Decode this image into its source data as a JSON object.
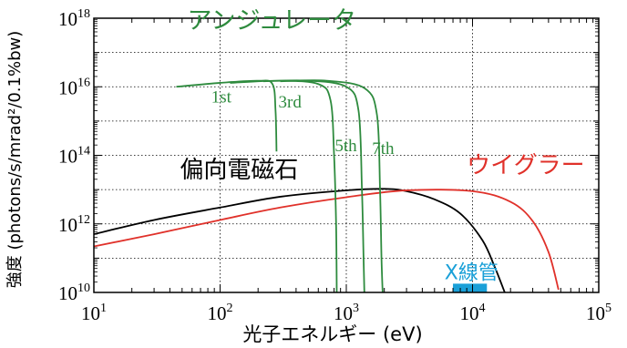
{
  "chart_data": {
    "type": "line",
    "xlabel": "光子エネルギー (eV)",
    "ylabel": "強度 (photons/s/mrad²/0.1%bw)",
    "x_scale": "log",
    "y_scale": "log",
    "xlim": [
      10,
      100000
    ],
    "ylim": [
      10000000000.0,
      1e+18
    ],
    "grid": true,
    "x_ticks": [
      {
        "value": 10,
        "base": "10",
        "exp": "1"
      },
      {
        "value": 100,
        "base": "10",
        "exp": "2"
      },
      {
        "value": 1000,
        "base": "10",
        "exp": "3"
      },
      {
        "value": 10000,
        "base": "10",
        "exp": "4"
      },
      {
        "value": 100000,
        "base": "10",
        "exp": "5"
      }
    ],
    "y_ticks": [
      {
        "value": 10000000000.0,
        "base": "10",
        "exp": "10"
      },
      {
        "value": 1000000000000.0,
        "base": "10",
        "exp": "12"
      },
      {
        "value": 100000000000000.0,
        "base": "10",
        "exp": "14"
      },
      {
        "value": 1e+16,
        "base": "10",
        "exp": "16"
      },
      {
        "value": 1e+18,
        "base": "10",
        "exp": "18"
      }
    ],
    "series": [
      {
        "name": "偏向電磁石",
        "color": "#000000",
        "x": [
          10,
          30,
          100,
          300,
          1000,
          2000,
          3000,
          5000,
          8000,
          12000,
          15000,
          18000
        ],
        "y": [
          500000000000.0,
          1300000000000.0,
          3000000000000.0,
          6200000000000.0,
          9500000000000.0,
          10500000000000.0,
          9000000000000.0,
          5200000000000.0,
          2000000000000.0,
          330000000000.0,
          55000000000.0,
          10000000000.0
        ]
      },
      {
        "name": "ウイグラー",
        "color": "#e0312a",
        "x": [
          10,
          30,
          100,
          300,
          1000,
          3000,
          10000,
          20000,
          30000,
          40000,
          48000
        ],
        "y": [
          220000000000.0,
          500000000000.0,
          1300000000000.0,
          3000000000000.0,
          6000000000000.0,
          9500000000000.0,
          9000000000000.0,
          4400000000000.0,
          1200000000000.0,
          150000000000.0,
          12000000000.0
        ]
      },
      {
        "name": "アンジュレータ 1st",
        "color": "#2e8b3e",
        "x": [
          45,
          100,
          200,
          260,
          275,
          280
        ],
        "y": [
          1e+16,
          1.3e+16,
          1.5e+16,
          1.2e+16,
          2000000000000000.0,
          130000000000000.0
        ]
      },
      {
        "name": "アンジュレータ 3rd",
        "color": "#2e8b3e",
        "x": [
          120,
          300,
          600,
          750,
          800,
          830,
          840
        ],
        "y": [
          1.3e+16,
          1.5e+16,
          1.2e+16,
          4000000000000000.0,
          100000000000000.0,
          1000000000000.0,
          10000000000.0
        ]
      },
      {
        "name": "アンジュレータ 5th",
        "color": "#2e8b3e",
        "x": [
          220,
          500,
          1000,
          1250,
          1330,
          1370,
          1390
        ],
        "y": [
          1.45e+16,
          1.5e+16,
          1e+16,
          2000000000000000.0,
          10000000000000.0,
          100000000000.0,
          10000000000.0
        ]
      },
      {
        "name": "アンジュレータ 7th",
        "color": "#2e8b3e",
        "x": [
          300,
          700,
          1400,
          1750,
          1850,
          1900,
          1940
        ],
        "y": [
          1.45e+16,
          1.5e+16,
          9000000000000000.0,
          1500000000000000.0,
          10000000000000.0,
          100000000000.0,
          10000000000.0
        ]
      }
    ],
    "bands": [
      {
        "name": "X線管",
        "color": "#1aa0d8",
        "x_start": 7000,
        "x_end": 13000,
        "y_start": 10000000000.0,
        "y_end": 18000000000.0
      }
    ],
    "annotations": [
      {
        "text": "アンジュレータ",
        "color": "#2e8b3e",
        "x": 55,
        "y": 5e+17
      },
      {
        "text": "1st",
        "color": "#2e8b3e",
        "x": 85,
        "y": 3500000000000000.0
      },
      {
        "text": "3rd",
        "color": "#2e8b3e",
        "x": 290,
        "y": 2500000000000000.0
      },
      {
        "text": "5th",
        "color": "#2e8b3e",
        "x": 810,
        "y": 130000000000000.0
      },
      {
        "text": "7th",
        "color": "#2e8b3e",
        "x": 1600,
        "y": 110000000000000.0
      },
      {
        "text": "偏向電磁石",
        "color": "#000000",
        "x": 48,
        "y": 22000000000000.0
      },
      {
        "text": "ウイグラー",
        "color": "#e0312a",
        "x": 9000,
        "y": 30000000000000.0
      },
      {
        "text": "X線管",
        "color": "#1aa0d8",
        "x": 6000,
        "y": 24000000000.0
      }
    ]
  }
}
